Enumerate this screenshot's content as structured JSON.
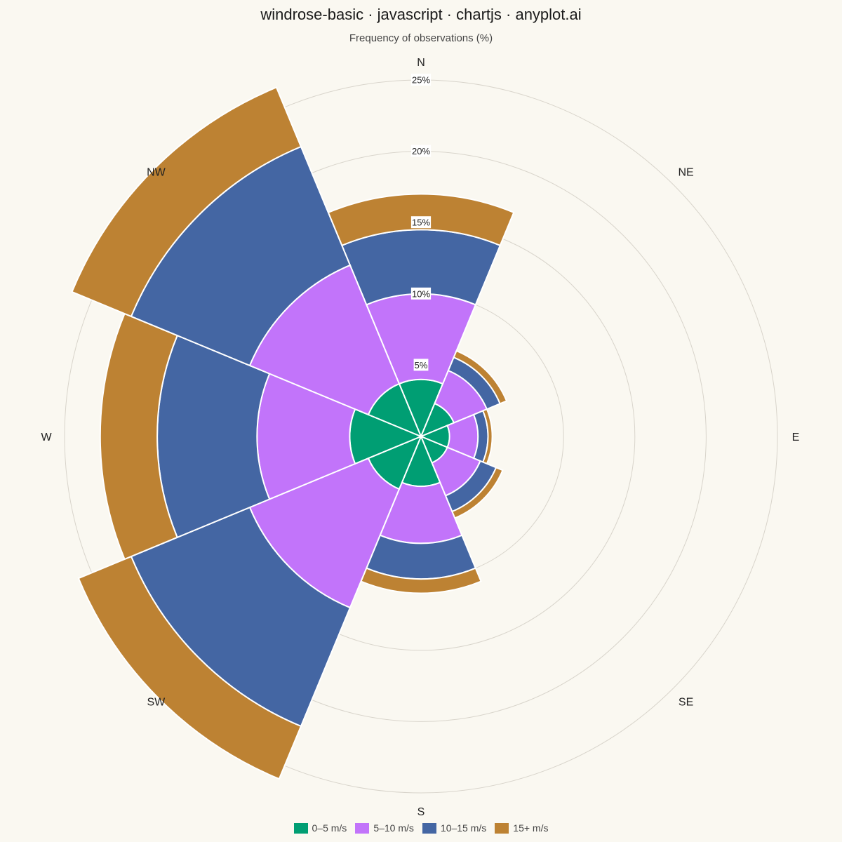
{
  "chart_data": {
    "type": "windrose",
    "title": "windrose-basic · javascript · chartjs · anyplot.ai",
    "subtitle": "Frequency of observations (%)",
    "directions": [
      "N",
      "NE",
      "E",
      "SE",
      "S",
      "SW",
      "W",
      "NW"
    ],
    "radial_ticks": [
      "5%",
      "10%",
      "15%",
      "20%",
      "25%"
    ],
    "radial_tick_values": [
      5,
      10,
      15,
      20,
      25
    ],
    "rmax": 25,
    "stacked": true,
    "legend_position": "bottom",
    "series": [
      {
        "name": "0–5 m/s",
        "color": "#009E73",
        "values": [
          4,
          2.5,
          2,
          2,
          3.5,
          4,
          5,
          4
        ]
      },
      {
        "name": "5–10 m/s",
        "color": "#C274FA",
        "values": [
          6,
          2.5,
          2,
          2.5,
          4,
          9,
          6.5,
          9
        ]
      },
      {
        "name": "10–15 m/s",
        "color": "#4466A3",
        "values": [
          4.5,
          1,
          0.7,
          1.2,
          2.5,
          9,
          7,
          9
        ]
      },
      {
        "name": "15+ m/s",
        "color": "#BD8233",
        "values": [
          2.5,
          0.5,
          0.3,
          0.5,
          1,
          4,
          4,
          4.5
        ]
      }
    ]
  }
}
